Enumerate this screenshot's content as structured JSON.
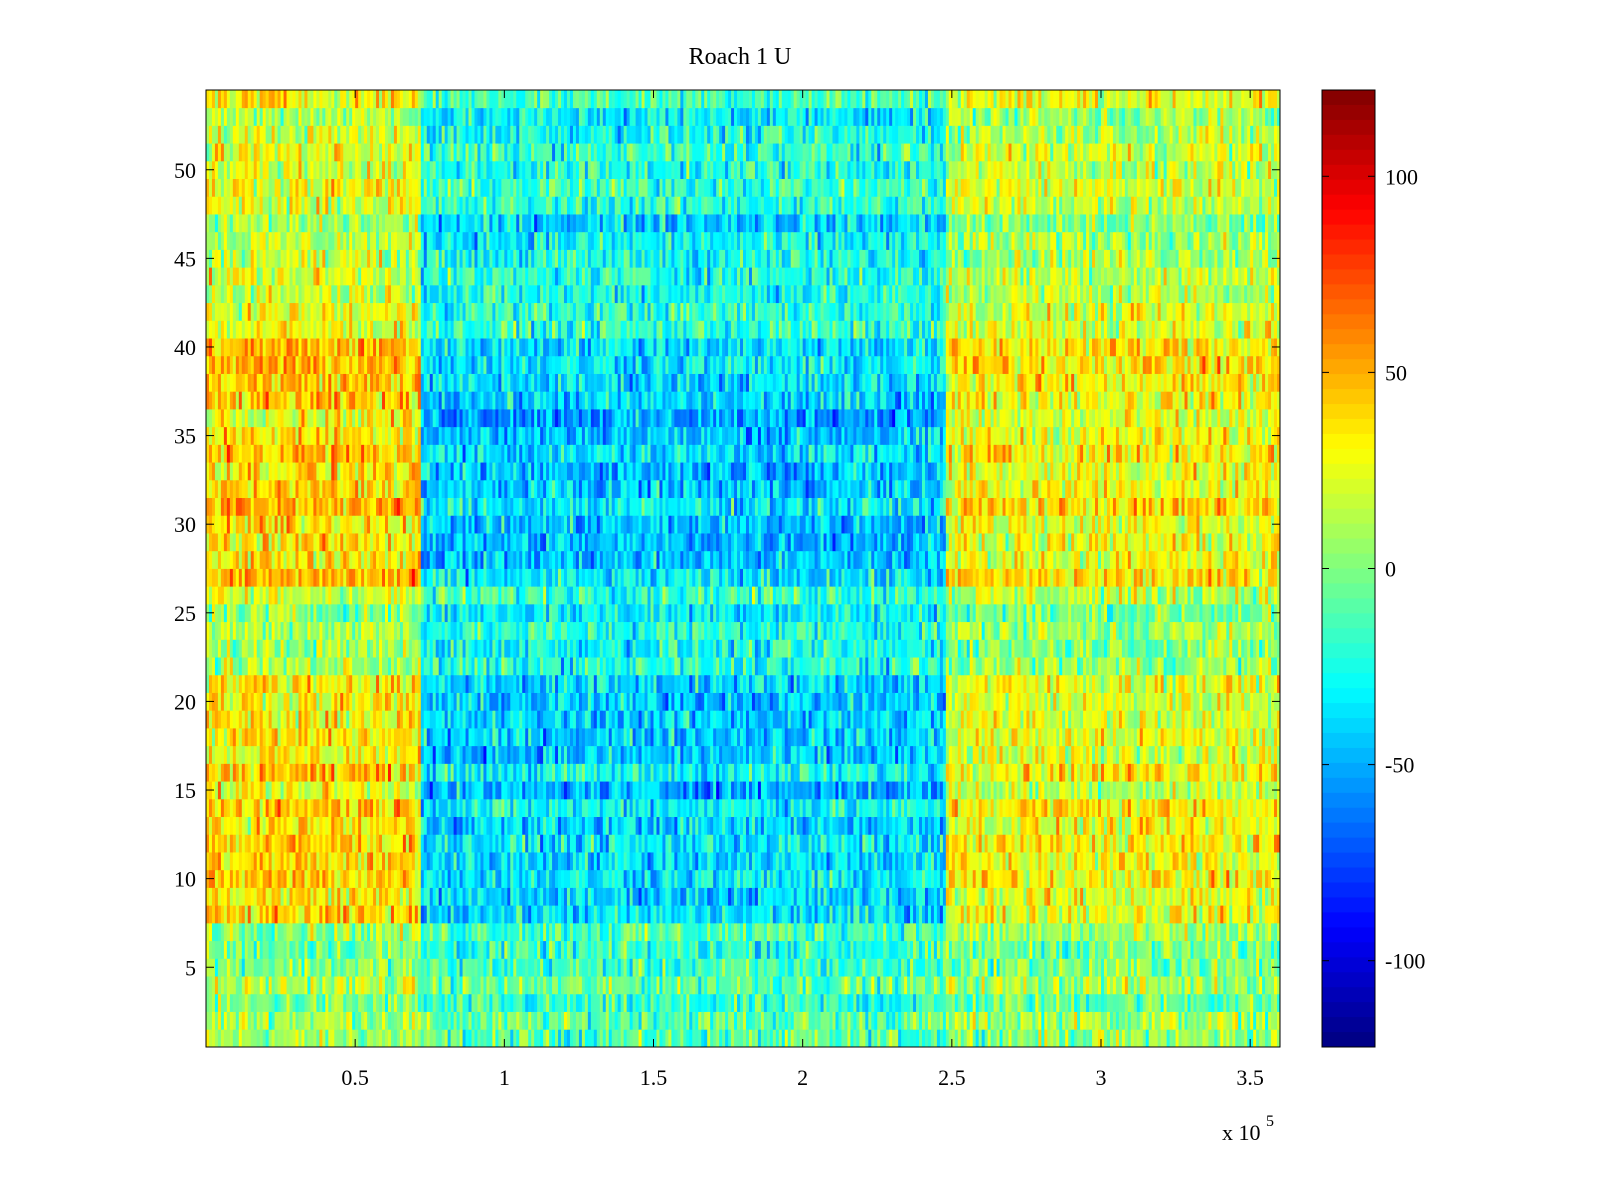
{
  "chart_data": {
    "type": "heatmap",
    "title": "Roach 1 U",
    "xlabel": "",
    "ylabel": "",
    "x_exponent_label": "x 10",
    "x_exponent_power": "5",
    "xlim": [
      0,
      3.6
    ],
    "ylim": [
      0.5,
      54.5
    ],
    "x_ticks": [
      0.5,
      1,
      1.5,
      2,
      2.5,
      3,
      3.5
    ],
    "x_tick_labels": [
      "0.5",
      "1",
      "1.5",
      "2",
      "2.5",
      "3",
      "3.5"
    ],
    "y_ticks": [
      5,
      10,
      15,
      20,
      25,
      30,
      35,
      40,
      45,
      50
    ],
    "y_tick_labels": [
      "5",
      "10",
      "15",
      "20",
      "25",
      "30",
      "35",
      "40",
      "45",
      "50"
    ],
    "rows": 54,
    "columns": 360,
    "colorbar": {
      "colormap": "jet",
      "range": [
        -122,
        122
      ],
      "ticks": [
        -100,
        -50,
        0,
        50,
        100
      ],
      "tick_labels": [
        "-100",
        "-50",
        "0",
        "50",
        "100"
      ]
    },
    "grid": false,
    "structure": {
      "x_segments": [
        {
          "x_start": 0.0,
          "x_end": 0.72,
          "mean_level": 40
        },
        {
          "x_start": 0.72,
          "x_end": 2.48,
          "mean_level": -35
        },
        {
          "x_start": 2.48,
          "x_end": 3.6,
          "mean_level": 30
        }
      ],
      "row_bands": [
        {
          "y_start": 0.5,
          "y_end": 8,
          "level_weight": 0.25
        },
        {
          "y_start": 8,
          "y_end": 22,
          "level_weight": 1.0
        },
        {
          "y_start": 22,
          "y_end": 27,
          "level_weight": 0.45
        },
        {
          "y_start": 27,
          "y_end": 41,
          "level_weight": 1.1
        },
        {
          "y_start": 41,
          "y_end": 54.5,
          "level_weight": 0.6
        }
      ]
    }
  }
}
